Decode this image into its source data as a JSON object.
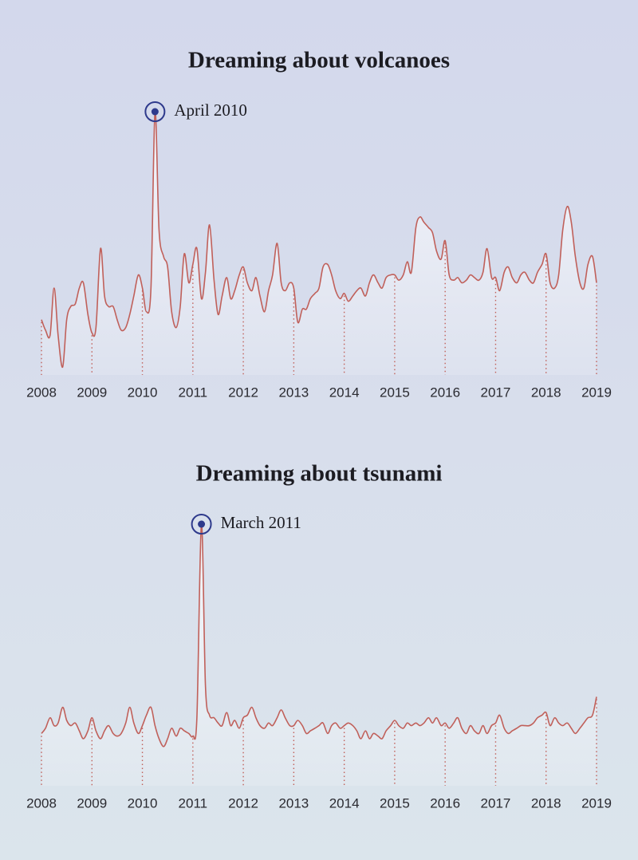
{
  "chart_data": [
    {
      "type": "line",
      "title": "Dreaming about volcanoes",
      "color": "#c0605a",
      "x": [
        2008,
        2008.08,
        2008.17,
        2008.25,
        2008.33,
        2008.42,
        2008.5,
        2008.58,
        2008.67,
        2008.75,
        2008.83,
        2008.92,
        2009,
        2009.08,
        2009.17,
        2009.25,
        2009.33,
        2009.42,
        2009.5,
        2009.58,
        2009.67,
        2009.75,
        2009.83,
        2009.92,
        2010,
        2010.08,
        2010.17,
        2010.25,
        2010.33,
        2010.42,
        2010.5,
        2010.58,
        2010.67,
        2010.75,
        2010.83,
        2010.92,
        2011,
        2011.08,
        2011.17,
        2011.25,
        2011.33,
        2011.42,
        2011.5,
        2011.58,
        2011.67,
        2011.75,
        2011.83,
        2011.92,
        2012,
        2012.08,
        2012.17,
        2012.25,
        2012.33,
        2012.42,
        2012.5,
        2012.58,
        2012.67,
        2012.75,
        2012.83,
        2012.92,
        2013,
        2013.08,
        2013.17,
        2013.25,
        2013.33,
        2013.42,
        2013.5,
        2013.58,
        2013.67,
        2013.75,
        2013.83,
        2013.92,
        2014,
        2014.08,
        2014.17,
        2014.25,
        2014.33,
        2014.42,
        2014.5,
        2014.58,
        2014.67,
        2014.75,
        2014.83,
        2014.92,
        2015,
        2015.08,
        2015.17,
        2015.25,
        2015.33,
        2015.42,
        2015.5,
        2015.58,
        2015.67,
        2015.75,
        2015.83,
        2015.92,
        2016,
        2016.08,
        2016.17,
        2016.25,
        2016.33,
        2016.42,
        2016.5,
        2016.58,
        2016.67,
        2016.75,
        2016.83,
        2016.92,
        2017,
        2017.08,
        2017.17,
        2017.25,
        2017.33,
        2017.42,
        2017.5,
        2017.58,
        2017.67,
        2017.75,
        2017.83,
        2017.92,
        2018,
        2018.08,
        2018.17,
        2018.25,
        2018.33,
        2018.42,
        2018.5,
        2018.58,
        2018.67,
        2018.75,
        2018.83,
        2018.92,
        2019
      ],
      "values": [
        21,
        17,
        15,
        33,
        15,
        3,
        21,
        26,
        27,
        33,
        35,
        23,
        16,
        18,
        48,
        30,
        26,
        26,
        21,
        17,
        18,
        23,
        30,
        38,
        33,
        24,
        33,
        100,
        55,
        45,
        41,
        24,
        18,
        26,
        46,
        35,
        42,
        48,
        29,
        39,
        57,
        36,
        23,
        30,
        37,
        29,
        32,
        38,
        41,
        35,
        32,
        37,
        30,
        24,
        32,
        38,
        50,
        35,
        32,
        35,
        33,
        20,
        25,
        25,
        29,
        31,
        33,
        41,
        42,
        38,
        32,
        29,
        31,
        28,
        30,
        32,
        33,
        30,
        35,
        38,
        35,
        33,
        37,
        38,
        38,
        36,
        38,
        43,
        39,
        56,
        60,
        58,
        56,
        54,
        47,
        44,
        51,
        38,
        36,
        37,
        35,
        36,
        38,
        37,
        36,
        39,
        48,
        37,
        37,
        32,
        39,
        41,
        37,
        35,
        38,
        39,
        36,
        35,
        39,
        42,
        46,
        35,
        33,
        38,
        55,
        64,
        58,
        45,
        35,
        33,
        42,
        45,
        35
      ],
      "xlim": [
        2008,
        2019
      ],
      "xticks": [
        2008,
        2009,
        2010,
        2011,
        2012,
        2013,
        2014,
        2015,
        2016,
        2017,
        2018,
        2019
      ],
      "ylim": [
        0,
        100
      ],
      "annotation": {
        "text": "April 2010",
        "x": 2010.25
      }
    },
    {
      "type": "line",
      "title": "Dreaming about tsunami",
      "color": "#c0605a",
      "x": [
        2008,
        2008.08,
        2008.17,
        2008.25,
        2008.33,
        2008.42,
        2008.5,
        2008.58,
        2008.67,
        2008.75,
        2008.83,
        2008.92,
        2009,
        2009.08,
        2009.17,
        2009.25,
        2009.33,
        2009.42,
        2009.5,
        2009.58,
        2009.67,
        2009.75,
        2009.83,
        2009.92,
        2010,
        2010.08,
        2010.17,
        2010.25,
        2010.33,
        2010.42,
        2010.5,
        2010.58,
        2010.67,
        2010.75,
        2010.83,
        2010.92,
        2011,
        2011.08,
        2011.17,
        2011.25,
        2011.33,
        2011.42,
        2011.5,
        2011.58,
        2011.67,
        2011.75,
        2011.83,
        2011.92,
        2012,
        2012.08,
        2012.17,
        2012.25,
        2012.33,
        2012.42,
        2012.5,
        2012.58,
        2012.67,
        2012.75,
        2012.83,
        2012.92,
        2013,
        2013.08,
        2013.17,
        2013.25,
        2013.33,
        2013.42,
        2013.5,
        2013.58,
        2013.67,
        2013.75,
        2013.83,
        2013.92,
        2014,
        2014.08,
        2014.17,
        2014.25,
        2014.33,
        2014.42,
        2014.5,
        2014.58,
        2014.67,
        2014.75,
        2014.83,
        2014.92,
        2015,
        2015.08,
        2015.17,
        2015.25,
        2015.33,
        2015.42,
        2015.5,
        2015.58,
        2015.67,
        2015.75,
        2015.83,
        2015.92,
        2016,
        2016.08,
        2016.17,
        2016.25,
        2016.33,
        2016.42,
        2016.5,
        2016.58,
        2016.67,
        2016.75,
        2016.83,
        2016.92,
        2017,
        2017.08,
        2017.17,
        2017.25,
        2017.33,
        2017.42,
        2017.5,
        2017.58,
        2017.67,
        2017.75,
        2017.83,
        2017.92,
        2018,
        2018.08,
        2018.17,
        2018.25,
        2018.33,
        2018.42,
        2018.5,
        2018.58,
        2018.67,
        2018.75,
        2018.83,
        2018.92,
        2019
      ],
      "values": [
        20,
        22,
        26,
        23,
        24,
        30,
        25,
        23,
        24,
        21,
        18,
        21,
        26,
        21,
        18,
        21,
        23,
        20,
        19,
        20,
        24,
        30,
        24,
        20,
        23,
        27,
        30,
        23,
        18,
        15,
        18,
        22,
        19,
        22,
        21,
        20,
        19,
        26,
        100,
        38,
        27,
        26,
        24,
        23,
        28,
        23,
        25,
        22,
        26,
        27,
        30,
        26,
        23,
        22,
        24,
        23,
        26,
        29,
        26,
        23,
        23,
        25,
        23,
        20,
        21,
        22,
        23,
        24,
        20,
        23,
        24,
        22,
        23,
        24,
        23,
        21,
        18,
        21,
        18,
        20,
        19,
        18,
        21,
        23,
        25,
        23,
        22,
        24,
        23,
        24,
        23,
        24,
        26,
        24,
        26,
        23,
        24,
        22,
        24,
        26,
        22,
        20,
        23,
        21,
        20,
        23,
        20,
        23,
        24,
        27,
        22,
        20,
        21,
        22,
        23,
        23,
        23,
        24,
        26,
        27,
        28,
        23,
        26,
        24,
        23,
        24,
        22,
        20,
        22,
        24,
        26,
        27,
        34
      ],
      "xlim": [
        2008,
        2019
      ],
      "xticks": [
        2008,
        2009,
        2010,
        2011,
        2012,
        2013,
        2014,
        2015,
        2016,
        2017,
        2018,
        2019
      ],
      "ylim": [
        0,
        100
      ],
      "annotation": {
        "text": "March 2011",
        "x": 2011.17
      }
    }
  ]
}
